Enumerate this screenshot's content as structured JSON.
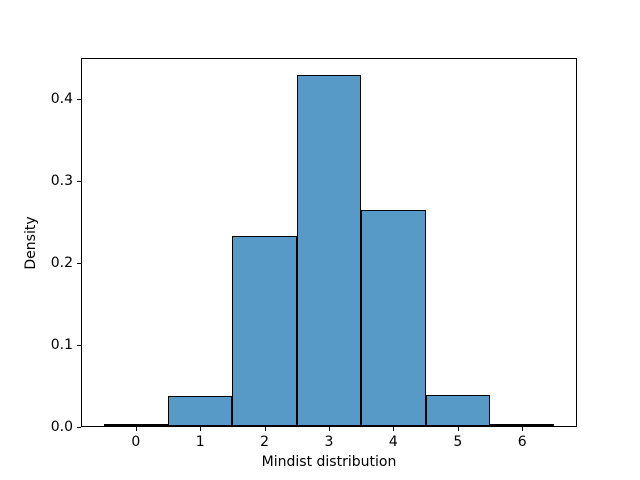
{
  "figure": {
    "background": "#ffffff"
  },
  "chart_data": {
    "type": "bar",
    "subtype": "histogram",
    "title": "",
    "xlabel": "Mindist distribution",
    "ylabel": "Density",
    "bin_centers": [
      0,
      1,
      2,
      3,
      4,
      5,
      6
    ],
    "bin_width": 1,
    "values": [
      0.002,
      0.037,
      0.232,
      0.428,
      0.264,
      0.038,
      0.002
    ],
    "xlim": [
      -0.85,
      6.85
    ],
    "ylim": [
      0,
      0.45
    ],
    "xtick_values": [
      0,
      1,
      2,
      3,
      4,
      5,
      6
    ],
    "xtick_labels": [
      "0",
      "1",
      "2",
      "3",
      "4",
      "5",
      "6"
    ],
    "ytick_values": [
      0.0,
      0.1,
      0.2,
      0.3,
      0.4
    ],
    "ytick_labels": [
      "0.0",
      "0.1",
      "0.2",
      "0.3",
      "0.4"
    ],
    "grid": false,
    "legend": null,
    "bar_fill_color": "#5799C7",
    "bar_edge_color": "#000000",
    "spine_color": "#000000",
    "text_color": "#000000"
  }
}
